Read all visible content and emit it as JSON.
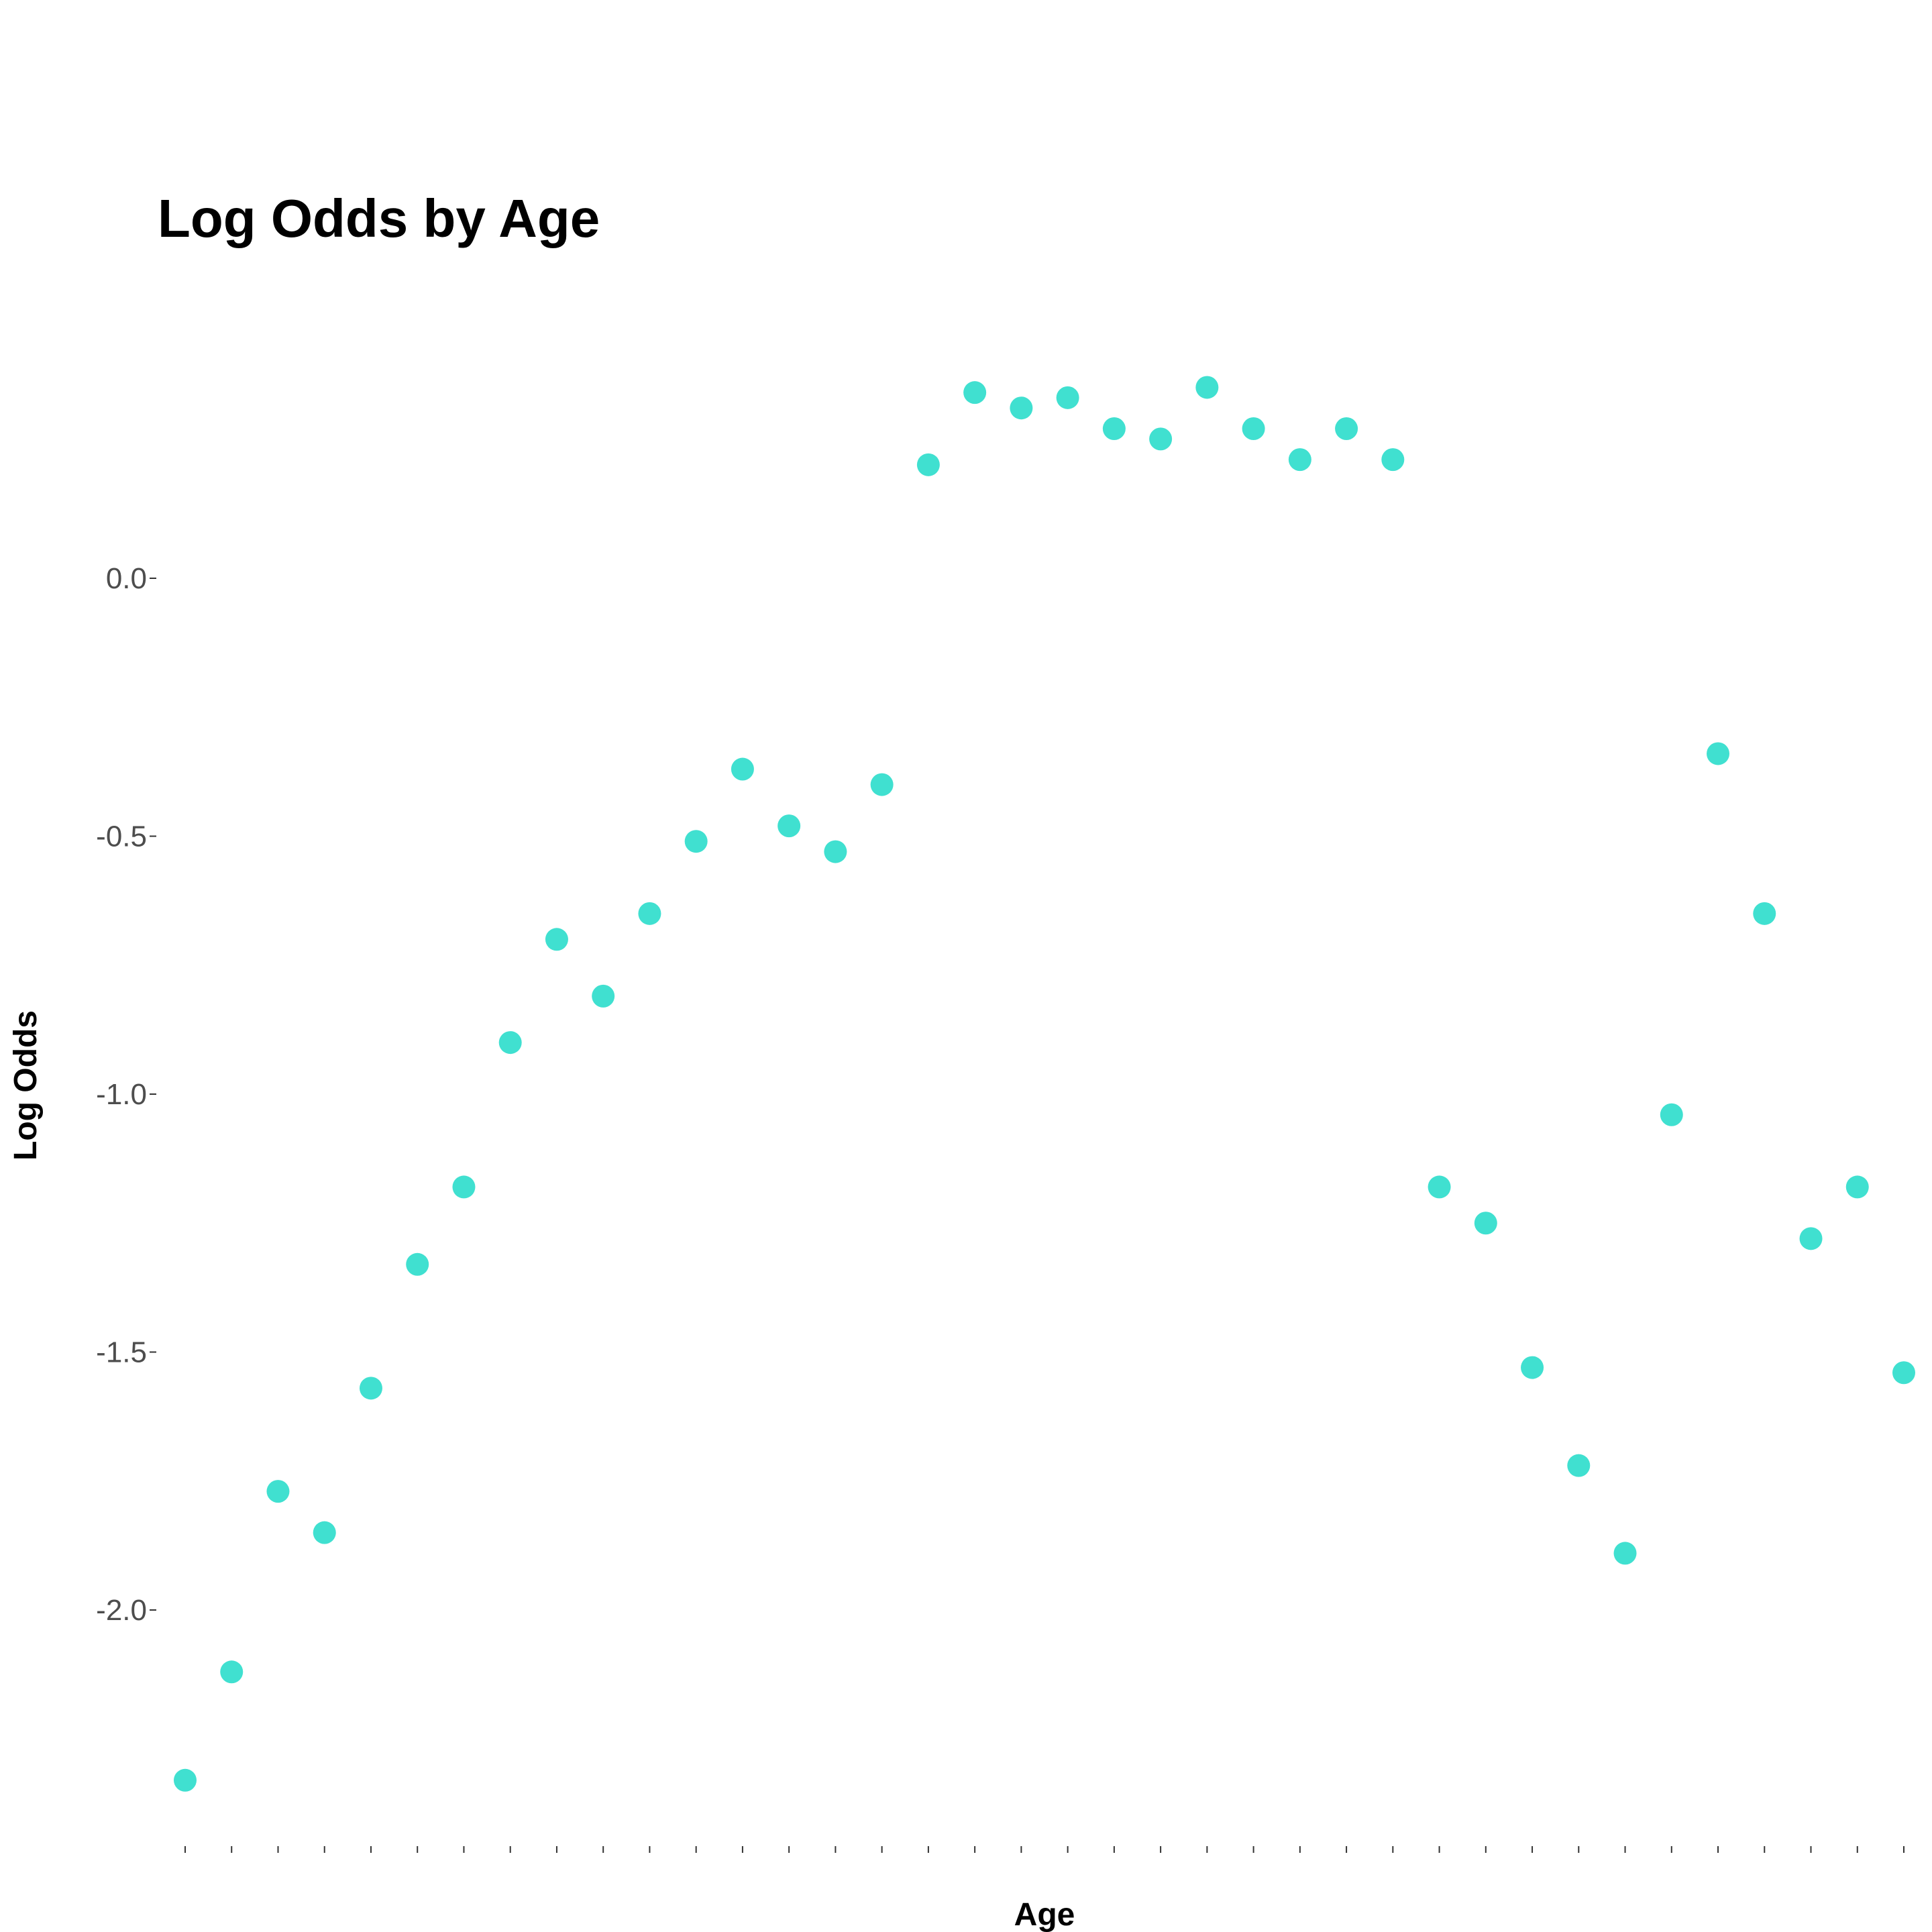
{
  "chart_data": {
    "type": "scatter",
    "title": "Log Odds by Age",
    "xlabel": "Age",
    "ylabel": "Log Odds",
    "x_tick_labels_shown": false,
    "y_ticks": [
      {
        "value": 0.0,
        "label": "0.0"
      },
      {
        "value": -0.5,
        "label": "-0.5"
      },
      {
        "value": -1.0,
        "label": "-1.0"
      },
      {
        "value": -1.5,
        "label": "-1.5"
      },
      {
        "value": -2.0,
        "label": "-2.0"
      }
    ],
    "ylim": [
      -2.48,
      0.53
    ],
    "grid": false,
    "point_color": "#40E0D0",
    "series": [
      {
        "values": [
          -2.33,
          -2.12,
          -1.77,
          -1.85,
          -1.57,
          -1.33,
          -1.18,
          -0.9,
          -0.7,
          -0.81,
          -0.65,
          -0.51,
          -0.37,
          -0.48,
          -0.53,
          -0.4,
          0.22,
          0.36,
          0.33,
          0.35,
          0.29,
          0.27,
          0.37,
          0.29,
          0.23,
          0.29,
          0.23,
          -1.18,
          -1.25,
          -1.53,
          -1.72,
          -1.89,
          -1.04,
          -0.34,
          -0.65,
          -1.28,
          -1.18,
          -1.54
        ]
      }
    ]
  }
}
